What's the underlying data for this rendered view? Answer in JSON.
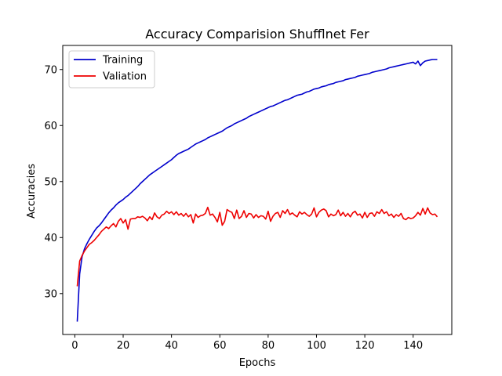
{
  "chart_data": {
    "type": "line",
    "title": "Accuracy Comparision Shufflnet Fer",
    "xlabel": "Epochs",
    "ylabel": "Accuracies",
    "xlim": [
      -5,
      156
    ],
    "ylim": [
      22.7,
      74.3
    ],
    "xticks": [
      0,
      20,
      40,
      60,
      80,
      100,
      120,
      140
    ],
    "yticks": [
      30,
      40,
      50,
      60,
      70
    ],
    "grid": false,
    "legend_position": "top-left",
    "x": [
      1,
      2,
      3,
      4,
      5,
      6,
      7,
      8,
      9,
      10,
      11,
      12,
      13,
      14,
      15,
      16,
      17,
      18,
      19,
      20,
      21,
      22,
      23,
      24,
      25,
      26,
      27,
      28,
      29,
      30,
      31,
      32,
      33,
      34,
      35,
      36,
      37,
      38,
      39,
      40,
      41,
      42,
      43,
      44,
      45,
      46,
      47,
      48,
      49,
      50,
      51,
      52,
      53,
      54,
      55,
      56,
      57,
      58,
      59,
      60,
      61,
      62,
      63,
      64,
      65,
      66,
      67,
      68,
      69,
      70,
      71,
      72,
      73,
      74,
      75,
      76,
      77,
      78,
      79,
      80,
      81,
      82,
      83,
      84,
      85,
      86,
      87,
      88,
      89,
      90,
      91,
      92,
      93,
      94,
      95,
      96,
      97,
      98,
      99,
      100,
      101,
      102,
      103,
      104,
      105,
      106,
      107,
      108,
      109,
      110,
      111,
      112,
      113,
      114,
      115,
      116,
      117,
      118,
      119,
      120,
      121,
      122,
      123,
      124,
      125,
      126,
      127,
      128,
      129,
      130,
      131,
      132,
      133,
      134,
      135,
      136,
      137,
      138,
      139,
      140,
      141,
      142,
      143,
      144,
      145,
      146,
      147,
      148,
      149,
      150
    ],
    "series": [
      {
        "name": "Training",
        "color": "#0000cc",
        "values": [
          25.0,
          33.5,
          36.6,
          38.0,
          38.9,
          39.7,
          40.4,
          41.1,
          41.7,
          42.1,
          42.6,
          43.2,
          43.8,
          44.4,
          44.9,
          45.3,
          45.8,
          46.2,
          46.5,
          46.8,
          47.2,
          47.5,
          47.9,
          48.3,
          48.7,
          49.1,
          49.6,
          50.0,
          50.4,
          50.8,
          51.2,
          51.5,
          51.8,
          52.1,
          52.4,
          52.7,
          53.0,
          53.3,
          53.6,
          53.9,
          54.3,
          54.7,
          55.0,
          55.2,
          55.4,
          55.6,
          55.8,
          56.1,
          56.4,
          56.7,
          56.9,
          57.1,
          57.3,
          57.5,
          57.8,
          58.0,
          58.2,
          58.4,
          58.6,
          58.8,
          59.0,
          59.3,
          59.6,
          59.8,
          60.0,
          60.3,
          60.5,
          60.7,
          60.9,
          61.1,
          61.3,
          61.6,
          61.8,
          62.0,
          62.2,
          62.4,
          62.6,
          62.8,
          63.0,
          63.2,
          63.4,
          63.5,
          63.7,
          63.9,
          64.1,
          64.3,
          64.5,
          64.6,
          64.8,
          65.0,
          65.2,
          65.4,
          65.5,
          65.6,
          65.8,
          66.0,
          66.1,
          66.3,
          66.5,
          66.6,
          66.7,
          66.9,
          67.0,
          67.1,
          67.3,
          67.4,
          67.5,
          67.7,
          67.8,
          67.9,
          68.0,
          68.2,
          68.3,
          68.4,
          68.5,
          68.6,
          68.8,
          68.9,
          69.0,
          69.1,
          69.2,
          69.3,
          69.5,
          69.6,
          69.7,
          69.8,
          69.9,
          70.0,
          70.1,
          70.3,
          70.4,
          70.5,
          70.6,
          70.7,
          70.8,
          70.9,
          71.0,
          71.1,
          71.2,
          71.3,
          71.0,
          71.5,
          70.7,
          71.2,
          71.5,
          71.6,
          71.7,
          71.8,
          71.8,
          71.8
        ]
      },
      {
        "name": "Valiation",
        "color": "#ee0000",
        "values": [
          31.3,
          35.8,
          36.8,
          37.6,
          38.2,
          38.8,
          39.1,
          39.5,
          40.0,
          40.5,
          41.1,
          41.5,
          41.9,
          41.6,
          42.1,
          42.5,
          41.9,
          42.9,
          43.4,
          42.6,
          43.2,
          41.5,
          43.3,
          43.4,
          43.4,
          43.7,
          43.6,
          43.8,
          43.5,
          43.0,
          43.7,
          43.2,
          44.4,
          43.7,
          43.4,
          44.0,
          44.2,
          44.7,
          44.3,
          44.6,
          44.1,
          44.6,
          44.0,
          44.3,
          43.8,
          44.3,
          43.7,
          44.1,
          42.6,
          44.2,
          43.6,
          43.9,
          44.0,
          44.3,
          45.4,
          44.0,
          44.2,
          43.6,
          42.8,
          44.5,
          42.2,
          42.9,
          45.0,
          44.7,
          44.5,
          43.4,
          44.9,
          43.4,
          43.8,
          44.8,
          43.6,
          44.3,
          44.2,
          43.5,
          44.1,
          43.6,
          43.9,
          43.8,
          43.3,
          44.7,
          42.9,
          43.8,
          44.3,
          44.5,
          43.6,
          44.8,
          44.3,
          45.0,
          44.1,
          44.4,
          44.0,
          43.7,
          44.6,
          44.2,
          44.5,
          44.1,
          43.8,
          44.2,
          45.3,
          43.7,
          44.5,
          44.9,
          45.1,
          44.8,
          43.7,
          44.2,
          43.9,
          44.1,
          44.9,
          43.9,
          44.5,
          43.8,
          44.3,
          43.7,
          44.4,
          44.7,
          44.0,
          44.2,
          43.5,
          44.5,
          43.6,
          44.3,
          44.4,
          43.8,
          44.6,
          44.3,
          45.0,
          44.3,
          44.6,
          43.9,
          44.2,
          43.6,
          44.1,
          43.8,
          44.3,
          43.4,
          43.2,
          43.6,
          43.4,
          43.5,
          43.9,
          44.5,
          44.0,
          45.2,
          44.2,
          45.3,
          44.4,
          44.1,
          44.2,
          43.7
        ]
      }
    ]
  }
}
